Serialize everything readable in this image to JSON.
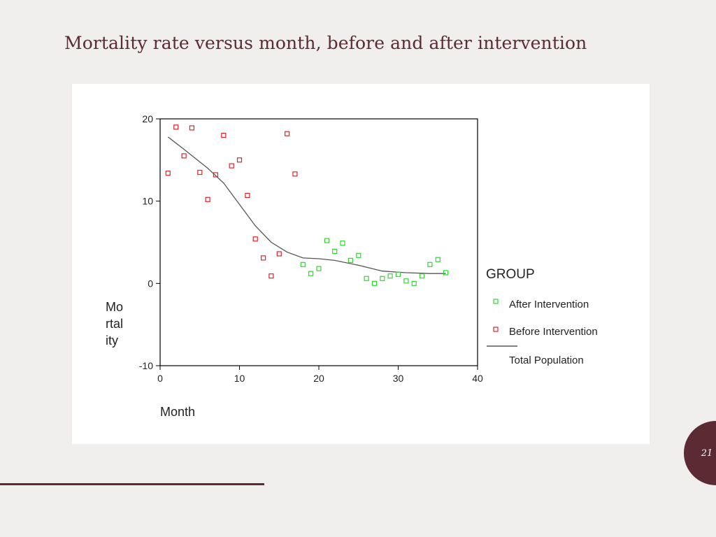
{
  "slide": {
    "title": "Mortality rate versus month, before and after intervention",
    "page_number": "21"
  },
  "colors": {
    "accent": "#5b2a33",
    "before": "#e0242b",
    "after": "#2fd92f",
    "line": "#555555"
  },
  "chart_data": {
    "type": "scatter",
    "title": "",
    "xlabel": "Month",
    "ylabel_lines": [
      "Mo",
      "rtal",
      "ity"
    ],
    "xlim": [
      0,
      40
    ],
    "ylim": [
      -10,
      20
    ],
    "x_ticks": [
      0,
      10,
      20,
      30,
      40
    ],
    "y_ticks": [
      -10,
      0,
      10,
      20
    ],
    "legend": {
      "title": "GROUP",
      "position": "right",
      "entries": [
        {
          "key": "after",
          "label": "After Intervention",
          "marker": "square"
        },
        {
          "key": "before",
          "label": "Before Intervention",
          "marker": "square"
        },
        {
          "key": "total",
          "label": "Total Population",
          "marker": "line"
        }
      ]
    },
    "series": [
      {
        "name": "Before Intervention",
        "key": "before",
        "type": "scatter",
        "points": [
          {
            "x": 1,
            "y": 13.4
          },
          {
            "x": 2,
            "y": 19.0
          },
          {
            "x": 3,
            "y": 15.5
          },
          {
            "x": 4,
            "y": 18.9
          },
          {
            "x": 5,
            "y": 13.5
          },
          {
            "x": 6,
            "y": 10.2
          },
          {
            "x": 7,
            "y": 13.2
          },
          {
            "x": 8,
            "y": 18.0
          },
          {
            "x": 9,
            "y": 14.3
          },
          {
            "x": 10,
            "y": 15.0
          },
          {
            "x": 11,
            "y": 10.7
          },
          {
            "x": 12,
            "y": 5.4
          },
          {
            "x": 13,
            "y": 3.1
          },
          {
            "x": 14,
            "y": 0.9
          },
          {
            "x": 15,
            "y": 3.6
          },
          {
            "x": 16,
            "y": 18.2
          },
          {
            "x": 17,
            "y": 13.3
          }
        ]
      },
      {
        "name": "After Intervention",
        "key": "after",
        "type": "scatter",
        "points": [
          {
            "x": 18,
            "y": 2.3
          },
          {
            "x": 19,
            "y": 1.2
          },
          {
            "x": 20,
            "y": 1.8
          },
          {
            "x": 21,
            "y": 5.2
          },
          {
            "x": 22,
            "y": 3.9
          },
          {
            "x": 23,
            "y": 4.9
          },
          {
            "x": 24,
            "y": 2.8
          },
          {
            "x": 25,
            "y": 3.4
          },
          {
            "x": 26,
            "y": 0.6
          },
          {
            "x": 27,
            "y": 0.0
          },
          {
            "x": 28,
            "y": 0.6
          },
          {
            "x": 29,
            "y": 0.9
          },
          {
            "x": 30,
            "y": 1.1
          },
          {
            "x": 31,
            "y": 0.3
          },
          {
            "x": 32,
            "y": 0.0
          },
          {
            "x": 33,
            "y": 0.9
          },
          {
            "x": 34,
            "y": 2.3
          },
          {
            "x": 35,
            "y": 2.9
          },
          {
            "x": 36,
            "y": 1.3
          }
        ]
      },
      {
        "name": "Total Population",
        "key": "total",
        "type": "line",
        "points": [
          {
            "x": 1,
            "y": 17.8
          },
          {
            "x": 3,
            "y": 16.3
          },
          {
            "x": 6,
            "y": 14.0
          },
          {
            "x": 8,
            "y": 12.2
          },
          {
            "x": 10,
            "y": 9.6
          },
          {
            "x": 12,
            "y": 7.0
          },
          {
            "x": 14,
            "y": 5.0
          },
          {
            "x": 16,
            "y": 3.8
          },
          {
            "x": 18,
            "y": 3.1
          },
          {
            "x": 20,
            "y": 3.0
          },
          {
            "x": 22,
            "y": 2.8
          },
          {
            "x": 25,
            "y": 2.2
          },
          {
            "x": 28,
            "y": 1.5
          },
          {
            "x": 31,
            "y": 1.3
          },
          {
            "x": 34,
            "y": 1.2
          },
          {
            "x": 36,
            "y": 1.2
          }
        ]
      }
    ]
  }
}
